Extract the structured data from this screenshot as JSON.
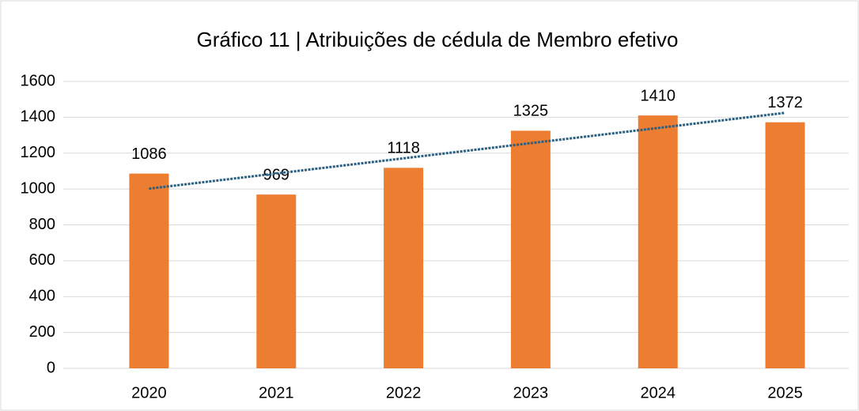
{
  "chart_data": {
    "type": "bar",
    "title": "Gráfico 11 | Atribuições de cédula de Membro efetivo",
    "categories": [
      "2020",
      "2021",
      "2022",
      "2023",
      "2024",
      "2025"
    ],
    "values": [
      1086,
      969,
      1118,
      1325,
      1410,
      1372
    ],
    "color": "#ed7d31",
    "ylim": [
      0,
      1600
    ],
    "yticks": [
      0,
      200,
      400,
      600,
      800,
      1000,
      1200,
      1400,
      1600
    ],
    "grid": true,
    "trendline": "linear",
    "trendline_color": "#2b6082"
  }
}
